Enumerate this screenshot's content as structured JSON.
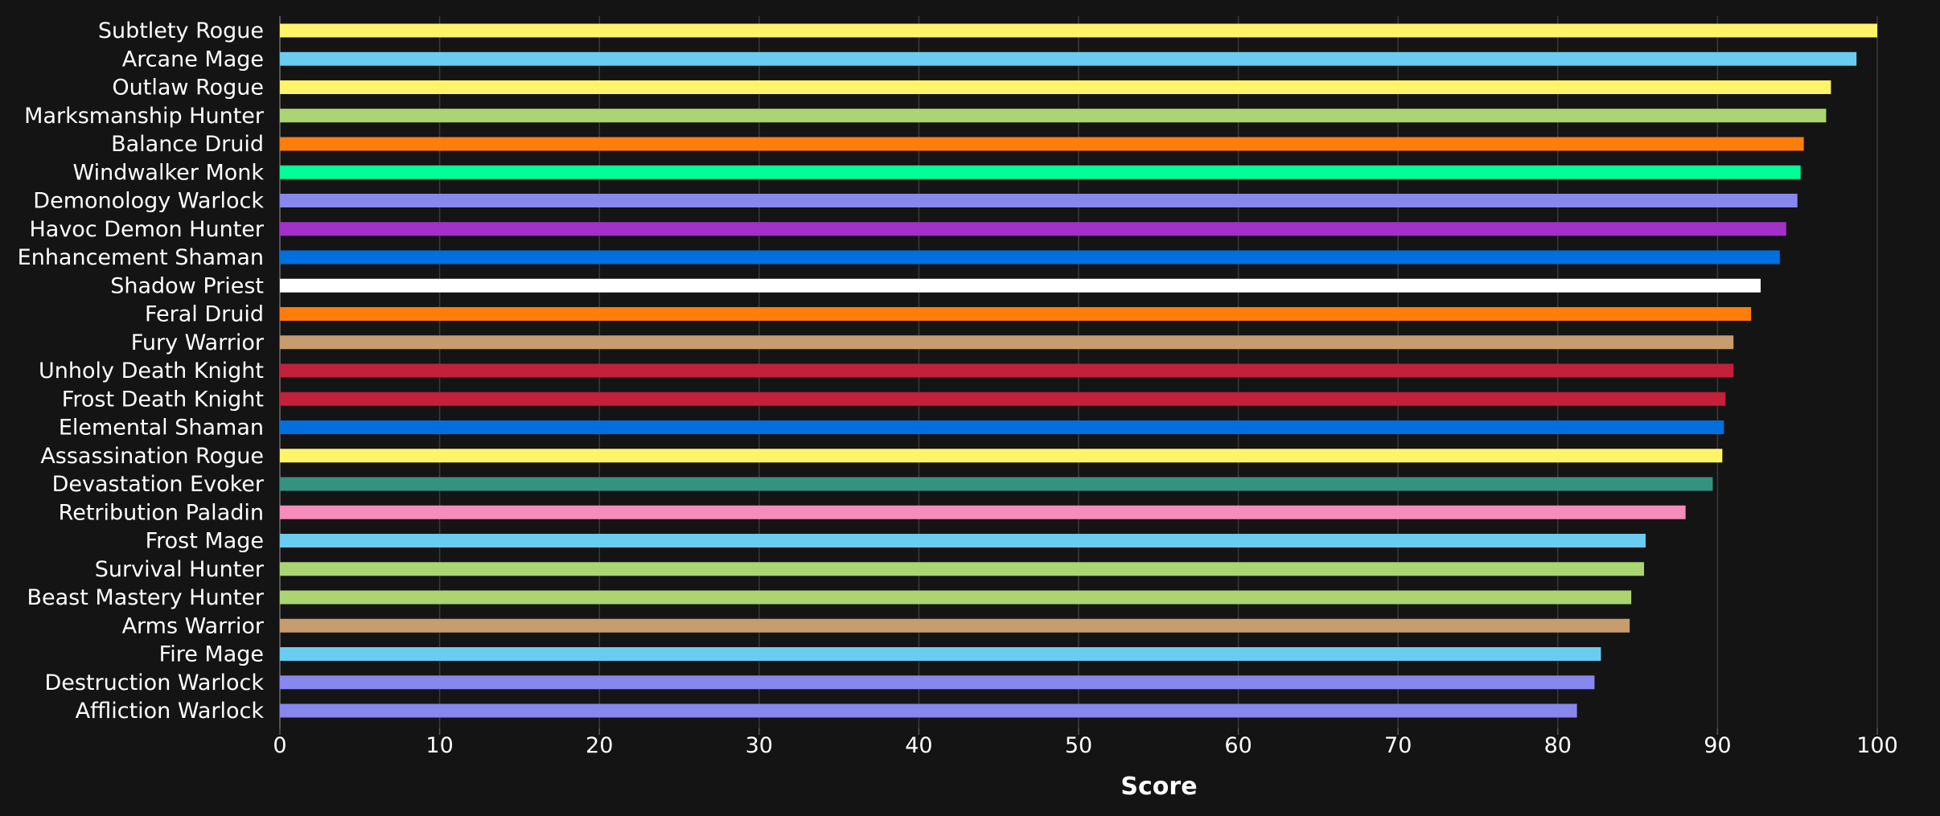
{
  "chart_data": {
    "type": "bar",
    "orientation": "horizontal",
    "title": "",
    "xlabel": "Score",
    "ylabel": "",
    "xlim": [
      0,
      100
    ],
    "x_ticks": [
      "0",
      "10",
      "20",
      "30",
      "40",
      "50",
      "60",
      "70",
      "80",
      "90",
      "100"
    ],
    "grid": "vertical",
    "categories": [
      "Subtlety Rogue",
      "Arcane Mage",
      "Outlaw Rogue",
      "Marksmanship Hunter",
      "Balance Druid",
      "Windwalker Monk",
      "Demonology Warlock",
      "Havoc Demon Hunter",
      "Enhancement Shaman",
      "Shadow Priest",
      "Feral Druid",
      "Fury Warrior",
      "Unholy Death Knight",
      "Frost Death Knight",
      "Elemental Shaman",
      "Assassination Rogue",
      "Devastation Evoker",
      "Retribution Paladin",
      "Frost Mage",
      "Survival Hunter",
      "Beast Mastery Hunter",
      "Arms Warrior",
      "Fire Mage",
      "Destruction Warlock",
      "Affliction Warlock"
    ],
    "values": [
      100,
      98.7,
      97.1,
      96.8,
      95.4,
      95.2,
      95.0,
      94.3,
      93.9,
      92.7,
      92.1,
      91.0,
      91.0,
      90.5,
      90.4,
      90.3,
      89.7,
      88.0,
      85.5,
      85.4,
      84.6,
      84.5,
      82.7,
      82.3,
      81.2
    ],
    "colors": [
      "#FFF468",
      "#69CCF0",
      "#FFF468",
      "#ABD473",
      "#FF7D0A",
      "#00FF96",
      "#8787ED",
      "#A330C9",
      "#0070DE",
      "#FFFFFF",
      "#FF7D0A",
      "#C79C6E",
      "#C41F3B",
      "#C41F3B",
      "#0070DE",
      "#FFF468",
      "#33937F",
      "#F58CBA",
      "#69CCF0",
      "#ABD473",
      "#ABD473",
      "#C79C6E",
      "#69CCF0",
      "#8787ED",
      "#8787ED"
    ]
  },
  "theme": {
    "background": "#141414",
    "text": "#FFFFFF",
    "grid": "#3A3A3A",
    "axis": "#555555"
  }
}
